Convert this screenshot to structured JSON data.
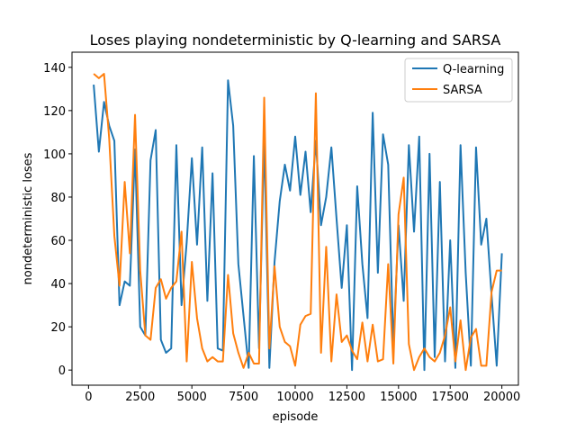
{
  "chart_data": {
    "type": "line",
    "title": "Loses playing nondeterministic by Q-learning and SARSA",
    "xlabel": "episode",
    "ylabel": "nondeterministic loses",
    "xlim": [
      -800,
      20800
    ],
    "ylim": [
      -7,
      147
    ],
    "xticks": [
      0,
      2500,
      5000,
      7500,
      10000,
      12500,
      15000,
      17500,
      20000
    ],
    "yticks": [
      0,
      20,
      40,
      60,
      80,
      100,
      120,
      140
    ],
    "grid": false,
    "legend_position": "top-right",
    "x": [
      250,
      500,
      750,
      1000,
      1250,
      1500,
      1750,
      2000,
      2250,
      2500,
      2750,
      3000,
      3250,
      3500,
      3750,
      4000,
      4250,
      4500,
      4750,
      5000,
      5250,
      5500,
      5750,
      6000,
      6250,
      6500,
      6750,
      7000,
      7250,
      7500,
      7750,
      8000,
      8250,
      8500,
      8750,
      9000,
      9250,
      9500,
      9750,
      10000,
      10250,
      10500,
      10750,
      11000,
      11250,
      11500,
      11750,
      12000,
      12250,
      12500,
      12750,
      13000,
      13250,
      13500,
      13750,
      14000,
      14250,
      14500,
      14750,
      15000,
      15250,
      15500,
      15750,
      16000,
      16250,
      16500,
      16750,
      17000,
      17250,
      17500,
      17750,
      18000,
      18250,
      18500,
      18750,
      19000,
      19250,
      19500,
      19750,
      20000
    ],
    "series": [
      {
        "name": "Q-learning",
        "color": "#1f77b4",
        "values": [
          132,
          101,
          124,
          113,
          106,
          30,
          41,
          39,
          102,
          20,
          16,
          97,
          111,
          14,
          8,
          10,
          104,
          30,
          59,
          98,
          58,
          103,
          32,
          91,
          10,
          9,
          134,
          113,
          49,
          25,
          1,
          99,
          10,
          107,
          1,
          50,
          78,
          95,
          83,
          108,
          81,
          101,
          73,
          106,
          67,
          80,
          103,
          70,
          38,
          67,
          0,
          85,
          49,
          24,
          119,
          45,
          109,
          95,
          11,
          67,
          32,
          104,
          64,
          108,
          0,
          100,
          6,
          87,
          4,
          60,
          1,
          104,
          45,
          2,
          103,
          58,
          70,
          35,
          2,
          54
        ]
      },
      {
        "name": "SARSA",
        "color": "#ff7f0e",
        "values": [
          137,
          135,
          137,
          107,
          62,
          39,
          87,
          54,
          118,
          46,
          16,
          14,
          38,
          42,
          33,
          38,
          41,
          64,
          4,
          50,
          24,
          10,
          4,
          6,
          4,
          4,
          44,
          17,
          8,
          1,
          8,
          3,
          3,
          126,
          10,
          48,
          20,
          13,
          11,
          2,
          21,
          25,
          26,
          128,
          8,
          57,
          4,
          35,
          13,
          16,
          9,
          5,
          22,
          4,
          21,
          4,
          5,
          49,
          3,
          72,
          89,
          12,
          0,
          6,
          10,
          6,
          4,
          8,
          16,
          29,
          4,
          23,
          0,
          15,
          19,
          2,
          2,
          36,
          46,
          46
        ]
      }
    ]
  }
}
